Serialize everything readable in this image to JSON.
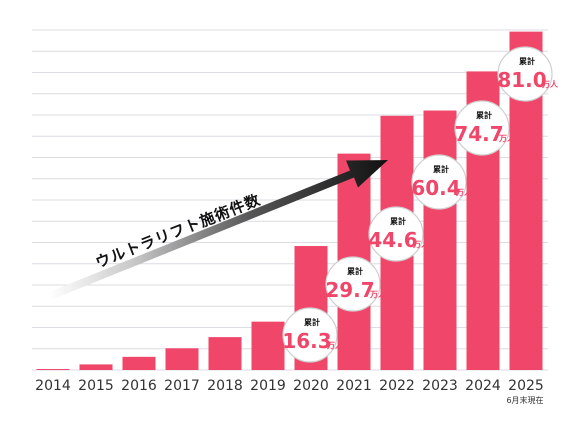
{
  "chart_data": {
    "type": "bar",
    "categories": [
      "2014",
      "2015",
      "2016",
      "2017",
      "2018",
      "2019",
      "2020",
      "2021",
      "2022",
      "2023",
      "2024",
      "2025"
    ],
    "values": [
      0.3,
      1.7,
      4.0,
      6.6,
      10.0,
      14.7,
      37.7,
      65.8,
      77.3,
      78.9,
      90.8,
      102.9
    ],
    "ylim": [
      0,
      104
    ],
    "grid": true,
    "bar_color": "#f0466a",
    "note": "6月末現在",
    "arrow_label": "ウルトラリフト施術件数",
    "bubbles": [
      {
        "year": "2020",
        "label": "累計",
        "value": "16.3",
        "unit": "万人"
      },
      {
        "year": "2021",
        "label": "累計",
        "value": "29.7",
        "unit": "万人"
      },
      {
        "year": "2022",
        "label": "累計",
        "value": "44.6",
        "unit": "万人"
      },
      {
        "year": "2023",
        "label": "累計",
        "value": "60.4",
        "unit": "万人"
      },
      {
        "year": "2024",
        "label": "累計",
        "value": "74.7",
        "unit": "万人"
      },
      {
        "year": "2025",
        "label": "累計",
        "value": "81.0",
        "unit": "万人"
      }
    ]
  }
}
